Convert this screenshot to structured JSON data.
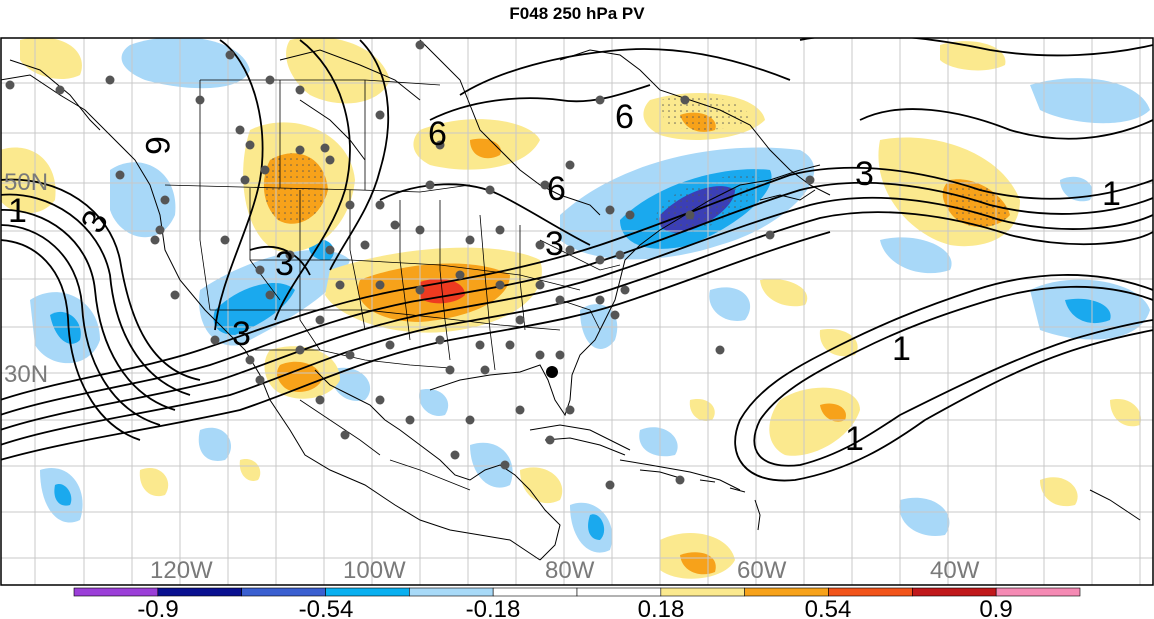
{
  "title": "F048 250 hPa PV",
  "longitude_labels": [
    "120W",
    "100W",
    "80W",
    "60W",
    "40W"
  ],
  "latitude_labels": [
    "50N",
    "30N"
  ],
  "contour_labels": [
    "6",
    "6",
    "6",
    "6",
    "3",
    "3",
    "3",
    "3",
    "3",
    "1",
    "1",
    "1",
    "1"
  ],
  "colorbar": {
    "tick_labels": [
      "-0.9",
      "-0.54",
      "-0.18",
      "0.18",
      "0.54",
      "0.9"
    ],
    "colors": [
      "#9b3fd8",
      "#0a1090",
      "#3a5fd0",
      "#0ab0f0",
      "#a8daf8",
      "#ffffff",
      "#ffffff",
      "#fbe98e",
      "#f7a21a",
      "#f2541a",
      "#c0181b",
      "#f58ab4"
    ]
  },
  "palette": {
    "dark_blue": "#3b3fb6",
    "blue": "#1aa9ee",
    "light_blue": "#a8d8f8",
    "light_yellow": "#fbe98e",
    "orange": "#f7a21a",
    "red": "#ee3a20",
    "station_dot": "#555555"
  }
}
